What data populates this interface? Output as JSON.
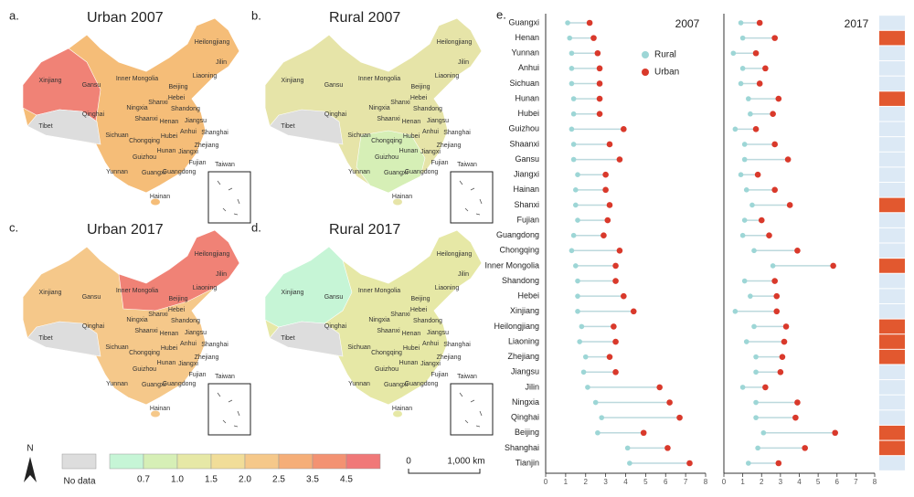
{
  "maps": {
    "panels": [
      {
        "letter": "a.",
        "title": "Urban 2007",
        "fill": "#f5bd78",
        "accent": "#f08276"
      },
      {
        "letter": "b.",
        "title": "Rural 2007",
        "fill": "#e6e4a8",
        "accent": "#d6efb6"
      },
      {
        "letter": "c.",
        "title": "Urban 2017",
        "fill": "#f5c88a",
        "accent": "#f08276"
      },
      {
        "letter": "d.",
        "title": "Rural 2017",
        "fill": "#e6e8a6",
        "accent": "#c6f5d6"
      }
    ],
    "labels": [
      "Xinjiang",
      "Tibet",
      "Qinghai",
      "Gansu",
      "Inner Mongolia",
      "Heilongjiang",
      "Jilin",
      "Liaoning",
      "Beijing",
      "Hebei",
      "Shanxi",
      "Ningxia",
      "Shandong",
      "Shaanxi",
      "Henan",
      "Jiangsu",
      "Anhui",
      "Shanghai",
      "Sichuan",
      "Chongqing",
      "Hubei",
      "Zhejiang",
      "Hunan",
      "Jiangxi",
      "Guizhou",
      "Fujian",
      "Yunnan",
      "Guangxi",
      "Guangdong",
      "Taiwan",
      "Hainan"
    ],
    "legend": {
      "north": "N",
      "no_data": "No data",
      "no_data_color": "#dddddd",
      "colors": [
        "#c6f5d6",
        "#d6efb6",
        "#e6e8a6",
        "#f1dd98",
        "#f5c88a",
        "#f5ae78",
        "#f39272",
        "#f07878"
      ],
      "breaks": [
        0.7,
        {
          "value": 1.0,
          "label": "1.0"
        },
        1.5,
        {
          "value": 2.0,
          "label": "2.0"
        },
        2.5,
        3.5,
        4.5
      ]
    },
    "scale": {
      "start": "0",
      "end": "1,000 km"
    }
  },
  "chart_data": {
    "type": "dumbbell",
    "label": "e.",
    "categories": [
      "Guangxi",
      "Henan",
      "Yunnan",
      "Anhui",
      "Sichuan",
      "Hunan",
      "Hubei",
      "Guizhou",
      "Shaanxi",
      "Gansu",
      "Jiangxi",
      "Hainan",
      "Shanxi",
      "Fujian",
      "Guangdong",
      "Chongqing",
      "Inner Mongolia",
      "Shandong",
      "Hebei",
      "Xinjiang",
      "Heilongjiang",
      "Liaoning",
      "Zhejiang",
      "Jiangsu",
      "Jilin",
      "Ningxia",
      "Qinghai",
      "Beijing",
      "Shanghai",
      "Tianjin"
    ],
    "series": [
      {
        "name": "Rural",
        "color": "#9dd6d6"
      },
      {
        "name": "Urban",
        "color": "#d9392b"
      }
    ],
    "panels": [
      {
        "title": "2007",
        "values": [
          [
            1.1,
            1.2,
            1.3,
            1.3,
            1.3,
            1.4,
            1.4,
            1.3,
            1.4,
            1.4,
            1.6,
            1.5,
            1.5,
            1.6,
            1.4,
            1.3,
            1.5,
            1.6,
            1.6,
            1.6,
            1.8,
            1.7,
            2.0,
            1.9,
            2.1,
            2.5,
            2.8,
            2.6,
            4.1,
            4.2
          ],
          [
            2.2,
            2.4,
            2.6,
            2.7,
            2.7,
            2.7,
            2.7,
            3.9,
            3.2,
            3.7,
            3.0,
            3.0,
            3.2,
            3.1,
            2.9,
            3.7,
            3.5,
            3.5,
            3.9,
            4.4,
            3.4,
            3.5,
            3.2,
            3.5,
            5.7,
            6.2,
            6.7,
            4.9,
            6.1,
            7.2
          ]
        ]
      },
      {
        "title": "2017",
        "values": [
          [
            0.9,
            1.0,
            0.5,
            1.0,
            0.9,
            1.3,
            1.4,
            0.6,
            1.1,
            1.1,
            0.9,
            1.2,
            1.5,
            1.1,
            1.0,
            1.6,
            2.6,
            1.1,
            1.4,
            0.6,
            1.6,
            1.2,
            1.7,
            1.7,
            1.0,
            1.7,
            1.7,
            2.1,
            1.8,
            1.3
          ],
          [
            1.9,
            2.7,
            1.7,
            2.2,
            1.9,
            2.9,
            2.6,
            1.7,
            2.7,
            3.4,
            1.8,
            2.7,
            3.5,
            2.0,
            2.4,
            3.9,
            5.8,
            2.7,
            2.8,
            2.8,
            3.3,
            3.2,
            3.1,
            3.0,
            2.2,
            3.9,
            3.8,
            5.9,
            4.3,
            2.9
          ]
        ]
      }
    ],
    "xlim": [
      0,
      8
    ],
    "xticks": [
      0,
      1,
      2,
      3,
      4,
      5,
      6,
      7,
      8
    ],
    "highlight": [
      false,
      true,
      false,
      false,
      false,
      true,
      false,
      false,
      false,
      false,
      false,
      false,
      true,
      false,
      false,
      false,
      true,
      false,
      false,
      false,
      true,
      true,
      true,
      false,
      false,
      false,
      false,
      true,
      true,
      false
    ],
    "highlight_color": "#e2582f",
    "base_color": "#dce9f5"
  }
}
